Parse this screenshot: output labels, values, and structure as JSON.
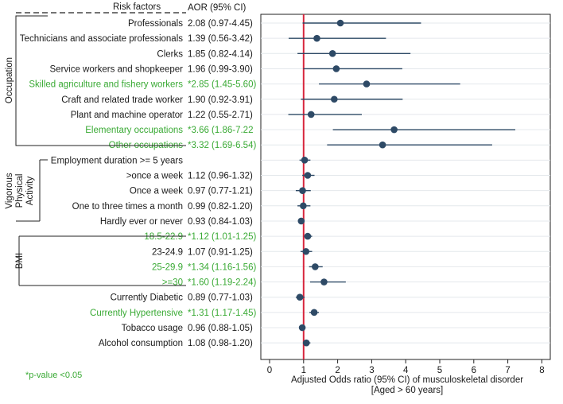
{
  "chart_data": {
    "type": "forest",
    "header": {
      "risk_factors": "Risk factors",
      "aor": "AOR",
      "ci": "(95% CI)"
    },
    "rows": [
      {
        "label": "Professionals",
        "aor_text": "2.08 (0.97-4.45)",
        "aor": 2.08,
        "low": 0.97,
        "high": 4.45,
        "significant": false
      },
      {
        "label": "Technicians and associate professionals",
        "aor_text": "1.39 (0.56-3.42)",
        "aor": 1.39,
        "low": 0.56,
        "high": 3.42,
        "significant": false
      },
      {
        "label": "Clerks",
        "aor_text": "1.85 (0.82-4.14)",
        "aor": 1.85,
        "low": 0.82,
        "high": 4.14,
        "significant": false
      },
      {
        "label": "Service workers and shopkeeper",
        "aor_text": "1.96 (0.99-3.90)",
        "aor": 1.96,
        "low": 0.99,
        "high": 3.9,
        "significant": false
      },
      {
        "label": "Skilled agriculture and fishery workers",
        "aor_text": "*2.85 (1.45-5.60)",
        "aor": 2.85,
        "low": 1.45,
        "high": 5.6,
        "significant": true
      },
      {
        "label": "Craft and related trade worker",
        "aor_text": "1.90 (0.92-3.91)",
        "aor": 1.9,
        "low": 0.92,
        "high": 3.91,
        "significant": false
      },
      {
        "label": "Plant and machine operator",
        "aor_text": "1.22 (0.55-2.71)",
        "aor": 1.22,
        "low": 0.55,
        "high": 2.71,
        "significant": false
      },
      {
        "label": "Elementary occupations",
        "aor_text": "*3.66 (1.86-7.22",
        "aor": 3.66,
        "low": 1.86,
        "high": 7.22,
        "significant": true
      },
      {
        "label": "Other occupations",
        "aor_text": "*3.32 (1.69-6.54)",
        "aor": 3.32,
        "low": 1.69,
        "high": 6.54,
        "significant": true
      },
      {
        "label": "Employment duration >= 5 years",
        "aor_text": "",
        "aor": 1.03,
        "low": 0.88,
        "high": 1.2,
        "significant": false
      },
      {
        "label": ">once a week",
        "aor_text": "1.12 (0.96-1.32)",
        "aor": 1.12,
        "low": 0.96,
        "high": 1.32,
        "significant": false
      },
      {
        "label": "Once a week",
        "aor_text": "0.97 (0.77-1.21)",
        "aor": 0.97,
        "low": 0.77,
        "high": 1.21,
        "significant": false
      },
      {
        "label": "One to three times a month",
        "aor_text": "0.99 (0.82-1.20)",
        "aor": 0.99,
        "low": 0.82,
        "high": 1.2,
        "significant": false
      },
      {
        "label": "Hardly ever or never",
        "aor_text": "0.93 (0.84-1.03)",
        "aor": 0.93,
        "low": 0.84,
        "high": 1.03,
        "significant": false
      },
      {
        "label": "18.5-22.9",
        "aor_text": "*1.12 (1.01-1.25)",
        "aor": 1.12,
        "low": 1.01,
        "high": 1.25,
        "significant": true
      },
      {
        "label": "23-24.9",
        "aor_text": "1.07 (0.91-1.25)",
        "aor": 1.07,
        "low": 0.91,
        "high": 1.25,
        "significant": false
      },
      {
        "label": "25-29.9",
        "aor_text": "*1.34 (1.16-1.56)",
        "aor": 1.34,
        "low": 1.16,
        "high": 1.56,
        "significant": true
      },
      {
        "label": ">=30",
        "aor_text": "*1.60 (1.19-2.24)",
        "aor": 1.6,
        "low": 1.19,
        "high": 2.24,
        "significant": true
      },
      {
        "label": "Currently Diabetic",
        "aor_text": "0.89 (0.77-1.03)",
        "aor": 0.89,
        "low": 0.77,
        "high": 1.03,
        "significant": false
      },
      {
        "label": "Currently Hypertensive",
        "aor_text": "*1.31 (1.17-1.45)",
        "aor": 1.31,
        "low": 1.17,
        "high": 1.45,
        "significant": true
      },
      {
        "label": "Tobacco usage",
        "aor_text": "0.96 (0.88-1.05)",
        "aor": 0.96,
        "low": 0.88,
        "high": 1.05,
        "significant": false
      },
      {
        "label": "Alcohol consumption",
        "aor_text": "1.08 (0.98-1.20)",
        "aor": 1.08,
        "low": 0.98,
        "high": 1.2,
        "significant": false
      }
    ],
    "groups": [
      {
        "name": "Occupation",
        "label_lines": [
          "Occupation"
        ]
      },
      {
        "name": "Vigorous Physical Activity",
        "label_lines": [
          "Vigorous",
          "Physical",
          "Activity"
        ]
      },
      {
        "name": "BMI",
        "label_lines": [
          "BMI"
        ]
      }
    ],
    "x_ticks": [
      "0",
      "1",
      "2",
      "3",
      "4",
      "5",
      "6",
      "7",
      "8"
    ],
    "xlim": [
      -0.2,
      8.2
    ],
    "reference_line": 1,
    "xlabel_lines": [
      "Adjusted Odds ratio (95% CI) of musculoskeletal disorder",
      "[Aged > 60 years]"
    ],
    "footnote": "*p-value <0.05",
    "colors": {
      "point": "#2e4a66",
      "reference": "#d7263d",
      "significant": "#3aaa35",
      "grid": "#e4e8ec",
      "frame": "#222222"
    }
  }
}
